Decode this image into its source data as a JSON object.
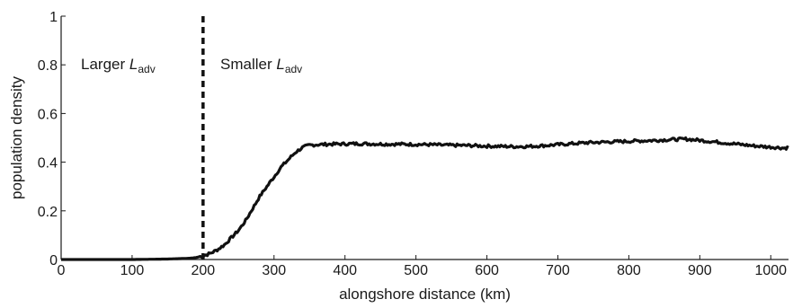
{
  "chart_data": {
    "type": "line",
    "xlabel": "alongshore distance (km)",
    "ylabel": "population density",
    "xlim": [
      0,
      1025
    ],
    "ylim": [
      0,
      1
    ],
    "x_ticks": [
      "0",
      "100",
      "200",
      "300",
      "400",
      "500",
      "600",
      "700",
      "800",
      "900",
      "1000"
    ],
    "y_ticks": [
      "0",
      "0.2",
      "0.4",
      "0.6",
      "0.8",
      "1"
    ],
    "grid": false,
    "legend": "none",
    "annotations": [
      {
        "text_main": "Larger ",
        "text_italic": "L",
        "text_sub": "adv"
      },
      {
        "text_main": "Smaller ",
        "text_italic": "L",
        "text_sub": "adv"
      }
    ],
    "vline": {
      "x": 200,
      "style": "dashed"
    },
    "series": [
      {
        "color": "#111111",
        "x": [
          0,
          100,
          150,
          180,
          190,
          200,
          210,
          220,
          230,
          240,
          250,
          260,
          270,
          280,
          290,
          300,
          310,
          320,
          330,
          340,
          350,
          360,
          380,
          400,
          420,
          440,
          460,
          480,
          500,
          520,
          540,
          560,
          580,
          600,
          620,
          640,
          660,
          680,
          700,
          720,
          740,
          760,
          780,
          800,
          820,
          840,
          860,
          880,
          900,
          920,
          940,
          960,
          980,
          1000,
          1020,
          1025
        ],
        "y": [
          0,
          0,
          0.002,
          0.005,
          0.008,
          0.015,
          0.025,
          0.04,
          0.06,
          0.09,
          0.12,
          0.16,
          0.21,
          0.26,
          0.3,
          0.34,
          0.38,
          0.41,
          0.44,
          0.46,
          0.47,
          0.472,
          0.474,
          0.475,
          0.476,
          0.475,
          0.474,
          0.474,
          0.473,
          0.472,
          0.47,
          0.469,
          0.468,
          0.466,
          0.465,
          0.464,
          0.465,
          0.468,
          0.472,
          0.476,
          0.48,
          0.482,
          0.484,
          0.486,
          0.488,
          0.49,
          0.493,
          0.495,
          0.49,
          0.484,
          0.478,
          0.472,
          0.466,
          0.462,
          0.458,
          0.46
        ]
      }
    ],
    "colors": {
      "line": "#111111",
      "axis": "#1a1a1a"
    }
  }
}
